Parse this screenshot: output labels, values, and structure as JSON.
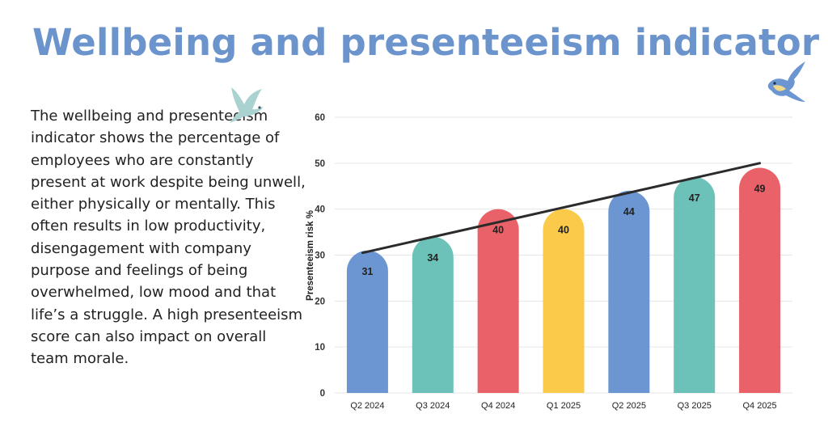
{
  "header": {
    "title": "Wellbeing and presenteeism indicator"
  },
  "description": "The wellbeing and presenteeism indicator shows the percentage of employees who are constantly present at work despite being unwell, either physically or mentally. This often results in low productivity, disengagement with company purpose and feelings of being overwhelmed, low mood and that life’s a struggle. A high presenteeism score can also impact on overall team morale.",
  "colors": {
    "title": "#6b93cc",
    "bird_teal": "#a9d2d0",
    "bird_blue": "#6c96d2"
  },
  "chart_data": {
    "type": "bar",
    "categories": [
      "Q2 2024",
      "Q3 2024",
      "Q4 2024",
      "Q1 2025",
      "Q2 2025",
      "Q3 2025",
      "Q4 2025"
    ],
    "values": [
      31,
      34,
      40,
      40,
      44,
      47,
      49
    ],
    "bar_colors": [
      "#6c96d2",
      "#6cc2b8",
      "#ea6269",
      "#fcca4a",
      "#6c96d2",
      "#6cc2b8",
      "#ea6269"
    ],
    "data_labels": [
      "31",
      "34",
      "40",
      "40",
      "44",
      "47",
      "49"
    ],
    "ylabel": "Presenteeism risk %",
    "xlabel": "",
    "ylim": [
      0,
      60
    ],
    "yticks": [
      0,
      10,
      20,
      30,
      40,
      50,
      60
    ],
    "grid": true,
    "trendline": {
      "start": 30.5,
      "end": 50
    }
  }
}
